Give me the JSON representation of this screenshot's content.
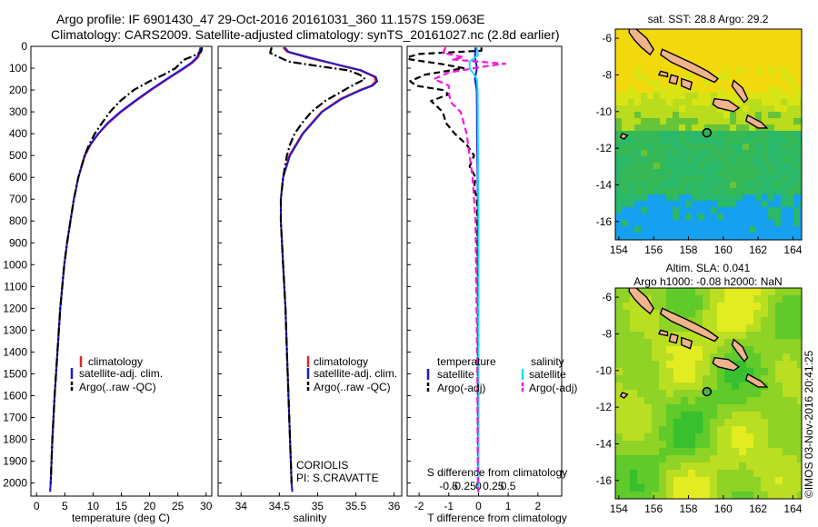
{
  "header": {
    "line1": "Argo profile: IF 6901430_47 29-Oct-2016 20161031_360 11.157S 159.063E",
    "line2": "Climatology: CARS2009. Satellite-adjusted climatology: synTS_20161027.nc (2.8d earlier)"
  },
  "credit": "©IMOS 03-Nov-2016 20:41:25",
  "institution": {
    "line1": "CORIOLIS",
    "line2": "PI: S.CRAVATTE"
  },
  "colors": {
    "climatology": "#e8231f",
    "satellite": "#1a1ad6",
    "argo": "#000000",
    "salinity_satellite": "#18e0f0",
    "salinity_argo": "#f018e0"
  },
  "chart_data": [
    {
      "id": "temperature",
      "type": "line",
      "xlabel": "temperature (deg C)",
      "ylabel": "",
      "xlim": [
        -1,
        31
      ],
      "ylim": [
        2060,
        0
      ],
      "xticks": [
        0,
        5,
        10,
        15,
        20,
        25,
        30
      ],
      "yticks": [
        0,
        100,
        200,
        300,
        400,
        500,
        600,
        700,
        800,
        900,
        1000,
        1100,
        1200,
        1300,
        1400,
        1500,
        1600,
        1700,
        1800,
        1900,
        2000
      ],
      "legend": [
        "climatology",
        "satellite-adj. clim.",
        "Argo(..raw -QC)"
      ],
      "series": [
        {
          "name": "climatology",
          "color": "#e8231f",
          "style": "solid",
          "depth": [
            5,
            25,
            50,
            75,
            100,
            150,
            200,
            250,
            300,
            350,
            400,
            450,
            500,
            600,
            700,
            800,
            900,
            1000,
            1200,
            1400,
            1600,
            1800,
            2000,
            2040
          ],
          "values": [
            29.2,
            29.0,
            28.6,
            27.6,
            26.2,
            23.2,
            20.3,
            17.6,
            15.0,
            12.8,
            11.0,
            9.6,
            8.6,
            7.4,
            6.6,
            6.0,
            5.4,
            4.9,
            4.2,
            3.7,
            3.2,
            2.8,
            2.5,
            2.4
          ]
        },
        {
          "name": "satellite-adj. clim.",
          "color": "#1a1ad6",
          "style": "solid",
          "depth": [
            5,
            25,
            50,
            75,
            100,
            150,
            200,
            250,
            300,
            350,
            400,
            450,
            500,
            600,
            700,
            800,
            900,
            1000,
            1200,
            1400,
            1600,
            1800,
            2000,
            2040
          ],
          "values": [
            29.0,
            28.8,
            28.4,
            27.4,
            26.0,
            23.0,
            20.1,
            17.4,
            14.8,
            12.6,
            10.9,
            9.5,
            8.5,
            7.4,
            6.6,
            6.0,
            5.4,
            4.9,
            4.2,
            3.7,
            3.2,
            2.8,
            2.5,
            2.4
          ]
        },
        {
          "name": "Argo(..raw -QC)",
          "color": "#000000",
          "style": "dashdot",
          "depth": [
            5,
            25,
            45,
            60,
            80,
            100,
            130,
            160,
            200,
            250,
            300,
            350,
            400,
            450,
            500,
            600,
            700,
            800,
            900,
            1000,
            1200,
            1400,
            1600,
            1800,
            2000
          ],
          "values": [
            29.3,
            29.1,
            27.7,
            26.2,
            25.3,
            24.6,
            22.5,
            20.0,
            17.2,
            14.8,
            13.0,
            11.6,
            10.3,
            9.3,
            8.5,
            7.4,
            6.6,
            6.0,
            5.4,
            4.9,
            4.2,
            3.7,
            3.2,
            2.8,
            2.5
          ]
        }
      ]
    },
    {
      "id": "salinity",
      "type": "line",
      "xlabel": "salinity",
      "ylabel": "",
      "xlim": [
        33.7,
        36.1
      ],
      "ylim": [
        2060,
        0
      ],
      "xticks": [
        34,
        34.5,
        35,
        35.5,
        36
      ],
      "legend": [
        "climatology",
        "satellite-adj. clim.",
        "Argo(..raw -QC)"
      ],
      "series": [
        {
          "name": "climatology",
          "color": "#e8231f",
          "style": "solid",
          "depth": [
            5,
            25,
            50,
            80,
            110,
            140,
            160,
            180,
            200,
            240,
            300,
            400,
            500,
            600,
            700,
            800,
            1000,
            1200,
            1400,
            1600,
            1800,
            2000,
            2040
          ],
          "values": [
            34.55,
            34.6,
            34.85,
            35.2,
            35.55,
            35.74,
            35.76,
            35.7,
            35.55,
            35.3,
            35.05,
            34.8,
            34.63,
            34.55,
            34.52,
            34.52,
            34.55,
            34.58,
            34.6,
            34.62,
            34.64,
            34.66,
            34.67
          ]
        },
        {
          "name": "satellite-adj. clim.",
          "color": "#1a1ad6",
          "style": "solid",
          "depth": [
            5,
            25,
            50,
            80,
            110,
            140,
            160,
            180,
            200,
            240,
            300,
            400,
            500,
            600,
            700,
            800,
            1000,
            1200,
            1400,
            1600,
            1800,
            2000,
            2040
          ],
          "values": [
            34.57,
            34.62,
            34.88,
            35.22,
            35.57,
            35.76,
            35.78,
            35.72,
            35.57,
            35.32,
            35.06,
            34.81,
            34.64,
            34.55,
            34.52,
            34.52,
            34.55,
            34.58,
            34.6,
            34.62,
            34.64,
            34.66,
            34.67
          ]
        },
        {
          "name": "Argo(..raw -QC)",
          "color": "#000000",
          "style": "dashdot",
          "depth": [
            5,
            30,
            50,
            70,
            90,
            110,
            130,
            150,
            180,
            210,
            250,
            300,
            350,
            400,
            450,
            500,
            600,
            700,
            800,
            1000,
            1200,
            1400,
            1600,
            1800,
            2000
          ],
          "values": [
            34.4,
            34.38,
            34.5,
            34.62,
            35.0,
            35.4,
            35.55,
            35.62,
            35.45,
            35.3,
            35.1,
            34.92,
            34.8,
            34.7,
            34.64,
            34.6,
            34.55,
            34.52,
            34.52,
            34.55,
            34.58,
            34.6,
            34.62,
            34.64,
            34.66
          ]
        }
      ]
    },
    {
      "id": "difference",
      "type": "line",
      "xlabel": "T difference from climatology",
      "x2label": "S difference from climatology",
      "xlim": [
        -2.4,
        2.8
      ],
      "ylim": [
        2060,
        0
      ],
      "xticks": [
        -2,
        -1,
        0,
        1,
        2
      ],
      "x2ticks": [
        "-0.5",
        "-0.25",
        "0",
        "0.25",
        "0.5"
      ],
      "legend_headers": [
        "temperature",
        "salinity"
      ],
      "legend": [
        "satellite",
        "Argo(-adj)",
        "satellite",
        "Argo(-adj)"
      ],
      "series": [
        {
          "name": "satellite",
          "quantity": "temperature",
          "color": "#1a1ad6",
          "style": "solid",
          "depth": [
            5,
            50,
            100,
            150,
            200,
            300,
            400,
            500,
            600,
            800,
            1000,
            1500,
            2000,
            2040
          ],
          "values": [
            -0.1,
            -0.12,
            -0.05,
            -0.12,
            -0.06,
            -0.05,
            -0.05,
            -0.04,
            -0.03,
            -0.02,
            -0.02,
            -0.01,
            0.0,
            0.0
          ]
        },
        {
          "name": "Argo(-adj)",
          "quantity": "temperature",
          "color": "#000000",
          "style": "dashed",
          "depth": [
            5,
            20,
            35,
            50,
            60,
            80,
            100,
            130,
            160,
            180,
            200,
            220,
            250,
            300,
            350,
            400,
            450,
            500,
            550,
            600,
            650,
            700,
            800,
            1000,
            1200,
            1500,
            2000,
            2040
          ],
          "values": [
            0.1,
            0.1,
            -2.0,
            -2.4,
            -2.3,
            -1.3,
            -0.5,
            -1.8,
            -2.3,
            -2.1,
            -1.2,
            -1.0,
            -1.6,
            -1.2,
            -1.1,
            -0.8,
            -0.4,
            -0.15,
            -0.3,
            -0.1,
            -0.15,
            -0.05,
            -0.04,
            -0.03,
            -0.02,
            -0.02,
            -0.01,
            0.0
          ]
        },
        {
          "name": "satellite",
          "quantity": "salinity",
          "color": "#18e0f0",
          "style": "solid",
          "depth": [
            5,
            40,
            70,
            100,
            150,
            200,
            300,
            400,
            500,
            600,
            800,
            1000,
            1500,
            2000,
            2040
          ],
          "values": [
            -0.05,
            -0.02,
            -0.3,
            -0.3,
            -0.05,
            -0.03,
            -0.02,
            -0.02,
            -0.01,
            -0.01,
            0.0,
            0.0,
            0.0,
            0.0,
            0.0
          ]
        },
        {
          "name": "Argo(-adj)",
          "quantity": "salinity",
          "color": "#f018e0",
          "style": "dashed",
          "depth": [
            5,
            30,
            50,
            60,
            80,
            90,
            120,
            150,
            180,
            220,
            260,
            300,
            400,
            500,
            600,
            700,
            800,
            1000,
            1500,
            2000,
            2040
          ],
          "values": [
            -1.1,
            -1.2,
            -0.5,
            -0.9,
            0.9,
            0.3,
            -1.0,
            -1.5,
            -1.0,
            -1.0,
            -0.9,
            -0.6,
            -0.4,
            -0.3,
            -0.2,
            -0.15,
            -0.1,
            -0.08,
            -0.04,
            -0.02,
            0.0
          ]
        }
      ]
    }
  ],
  "maps": [
    {
      "id": "sst",
      "title1": "sat. SST: 28.8 Argo: 29.2",
      "title2": "",
      "xlim": [
        153.8,
        164.5
      ],
      "ylim": [
        -17,
        -5.5
      ],
      "xticks": [
        154,
        156,
        158,
        160,
        162,
        164
      ],
      "yticks": [
        -6,
        -8,
        -10,
        -12,
        -14,
        -16
      ],
      "float": {
        "lon": 159.063,
        "lat": -11.157
      },
      "palette": [
        "#16a0f0",
        "#2ab86a",
        "#35b855",
        "#66c33a",
        "#b9dc1c",
        "#d8e414",
        "#f2d90e"
      ]
    },
    {
      "id": "sla",
      "title1": "Altim. SLA: 0.041",
      "title2": "Argo h1000: -0.08 h2000: NaN",
      "xlim": [
        153.8,
        164.5
      ],
      "ylim": [
        -17,
        -5.5
      ],
      "xticks": [
        154,
        156,
        158,
        160,
        162,
        164
      ],
      "yticks": [
        -6,
        -8,
        -10,
        -12,
        -14,
        -16
      ],
      "float": {
        "lon": 159.063,
        "lat": -11.157
      },
      "palette": [
        "#38c02e",
        "#5fca2a",
        "#8ed326",
        "#bade22",
        "#e2ec20"
      ]
    }
  ]
}
